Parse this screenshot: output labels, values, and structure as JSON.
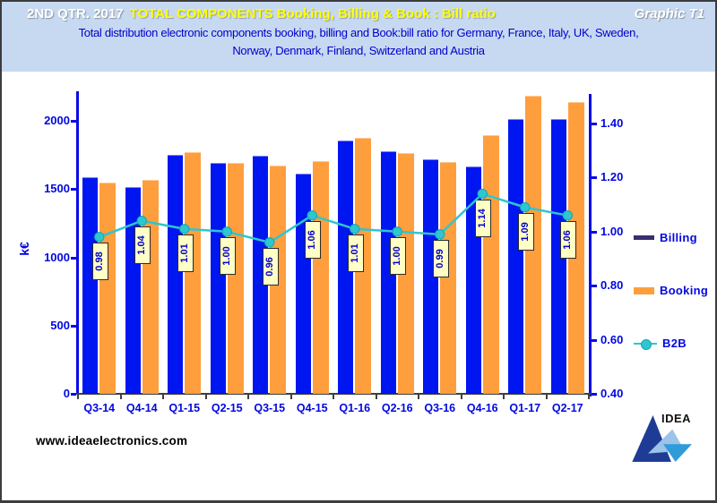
{
  "header": {
    "title_period": "2ND QTR. 2017",
    "title_main": "TOTAL COMPONENTS Booking, Billing  & Book : Bill ratio",
    "graphic_label": "Graphic T1",
    "subtitle_line1": "Total distribution electronic components booking, billing and Book:bill ratio for Germany,  France, Italy, UK, Sweden,",
    "subtitle_line2": "Norway, Denmark, Finland, Switzerland and Austria"
  },
  "chart_data": {
    "type": "bar",
    "categories": [
      "Q3-14",
      "Q4-14",
      "Q1-15",
      "Q2-15",
      "Q3-15",
      "Q4-15",
      "Q1-16",
      "Q2-16",
      "Q3-16",
      "Q4-16",
      "Q1-17",
      "Q2-17"
    ],
    "series": [
      {
        "name": "Billing",
        "type": "bar",
        "axis": "left",
        "color": "#0016f0",
        "values": [
          1585,
          1515,
          1750,
          1695,
          1745,
          1610,
          1855,
          1775,
          1715,
          1665,
          2010,
          2015
        ]
      },
      {
        "name": "Booking",
        "type": "bar",
        "axis": "left",
        "color": "#ff9e3d",
        "values": [
          1550,
          1570,
          1770,
          1690,
          1670,
          1705,
          1875,
          1765,
          1700,
          1895,
          2185,
          2135
        ]
      },
      {
        "name": "B2B",
        "type": "line",
        "axis": "right",
        "color": "#2ec6cf",
        "values": [
          0.98,
          1.04,
          1.01,
          1.0,
          0.96,
          1.06,
          1.01,
          1.0,
          0.99,
          1.14,
          1.09,
          1.06
        ]
      }
    ],
    "point_labels": [
      "0.98",
      "1.04",
      "1.01",
      "1.00",
      "0.96",
      "1.06",
      "1.01",
      "1.00",
      "0.99",
      "1.14",
      "1.09",
      "1.06"
    ],
    "left_axis": {
      "label": "k€",
      "tick_labels": [
        "0",
        "500",
        "1000",
        "1500",
        "2000"
      ],
      "range": [
        0,
        2200
      ],
      "grid": false
    },
    "right_axis": {
      "tick_labels": [
        "0.40",
        "0.60",
        "0.80",
        "1.00",
        "1.20",
        "1.40"
      ],
      "range": [
        0.4,
        1.5
      ]
    },
    "legend_position": "right"
  },
  "legend": {
    "billing_label": "Billing",
    "booking_label": "Booking",
    "b2b_label": "B2B",
    "billing_swatch_color": "#3a2e71",
    "booking_swatch_color": "#ff9e3d",
    "b2b_swatch_color": "#2ec6cf"
  },
  "footer": {
    "website": "www.ideaelectronics.com",
    "logo_text": "IDEA"
  }
}
